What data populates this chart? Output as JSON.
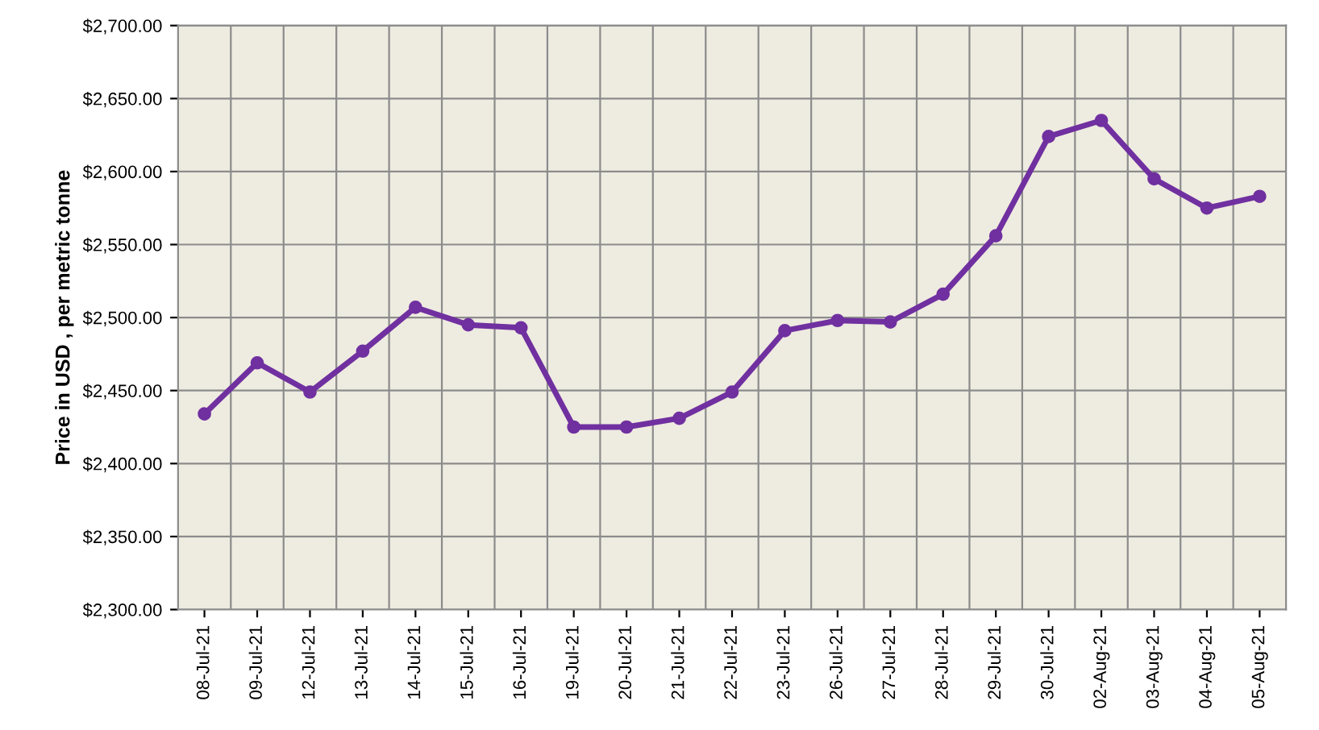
{
  "chart_data": {
    "type": "line",
    "ylabel": "Price in USD , per metric tonne",
    "categories": [
      "08-Jul-21",
      "09-Jul-21",
      "12-Jul-21",
      "13-Jul-21",
      "14-Jul-21",
      "15-Jul-21",
      "16-Jul-21",
      "19-Jul-21",
      "20-Jul-21",
      "21-Jul-21",
      "22-Jul-21",
      "23-Jul-21",
      "26-Jul-21",
      "27-Jul-21",
      "28-Jul-21",
      "29-Jul-21",
      "30-Jul-21",
      "02-Aug-21",
      "03-Aug-21",
      "04-Aug-21",
      "05-Aug-21"
    ],
    "series": [
      {
        "color": "#7030a0",
        "values": [
          2434,
          2469,
          2449,
          2477,
          2507,
          2495,
          2493,
          2425,
          2425,
          2431,
          2449,
          2491,
          2498,
          2497,
          2516,
          2556,
          2624,
          2635,
          2595,
          2575,
          2583
        ]
      }
    ],
    "ylim": [
      2300,
      2700
    ],
    "yticks": [
      {
        "value": 2300,
        "label": "$2,300.00"
      },
      {
        "value": 2350,
        "label": "$2,350.00"
      },
      {
        "value": 2400,
        "label": "$2,400.00"
      },
      {
        "value": 2450,
        "label": "$2,450.00"
      },
      {
        "value": 2500,
        "label": "$2,500.00"
      },
      {
        "value": 2550,
        "label": "$2,550.00"
      },
      {
        "value": 2600,
        "label": "$2,600.00"
      },
      {
        "value": 2650,
        "label": "$2,650.00"
      },
      {
        "value": 2700,
        "label": "$2,700.00"
      }
    ],
    "grid": true,
    "marker": "circle",
    "line_style": "solid",
    "legend": false
  }
}
